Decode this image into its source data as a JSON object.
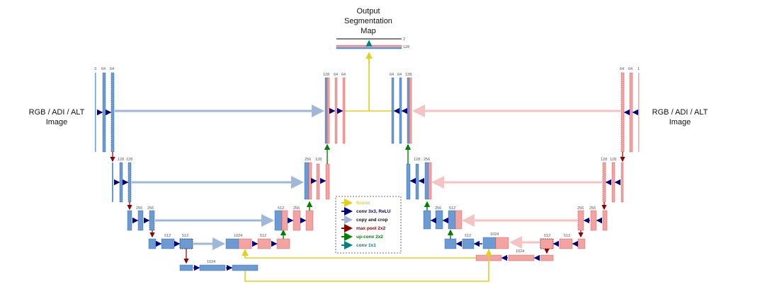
{
  "title": [
    "Output",
    "Segmentation",
    "Map"
  ],
  "input_left": [
    "RGB / ADI / ALT",
    "Image"
  ],
  "input_right": [
    "RGB / ADI / ALT",
    "Image"
  ],
  "output_channels": [
    "2",
    "128"
  ],
  "left_branch": {
    "level1": [
      "3",
      "64",
      "64"
    ],
    "level2": [
      "128",
      "128"
    ],
    "level3": [
      "256",
      "256"
    ],
    "level4": [
      "512",
      "512"
    ],
    "bottleneck": [
      "1024"
    ],
    "dec4": [
      "1024",
      "512"
    ],
    "dec3": [
      "512",
      "256"
    ],
    "dec2": [
      "256",
      "128"
    ],
    "dec1": [
      "128",
      "64",
      "64"
    ]
  },
  "right_branch": {
    "level1": [
      "64",
      "64",
      "1"
    ],
    "level2": [
      "128",
      "128"
    ],
    "level3": [
      "256",
      "256"
    ],
    "level4": [
      "512",
      "512"
    ],
    "bottleneck": [
      "1024"
    ],
    "dec4": [
      "512",
      "1024"
    ],
    "dec3": [
      "256",
      "512"
    ],
    "dec2": [
      "128",
      "256"
    ],
    "dec1": [
      "64",
      "64",
      "128"
    ]
  },
  "legend": [
    {
      "label": "fusion",
      "color": "#e0d020"
    },
    {
      "label": "conv 3x3, ReLU",
      "color": "#000080"
    },
    {
      "label": "copy and crop",
      "color": "#a0a0a0"
    },
    {
      "label": "max pool 2x2",
      "color": "#8b0000"
    },
    {
      "label": "up-conv 2x2",
      "color": "#008000"
    },
    {
      "label": "conv 1x1",
      "color": "#008080"
    }
  ],
  "colors": {
    "encoder_blue": "#6b9bd2",
    "decoder_pink": "#f4a3a3",
    "copy_blue": "#9fb7d8",
    "copy_pink": "#f6c3c3"
  }
}
